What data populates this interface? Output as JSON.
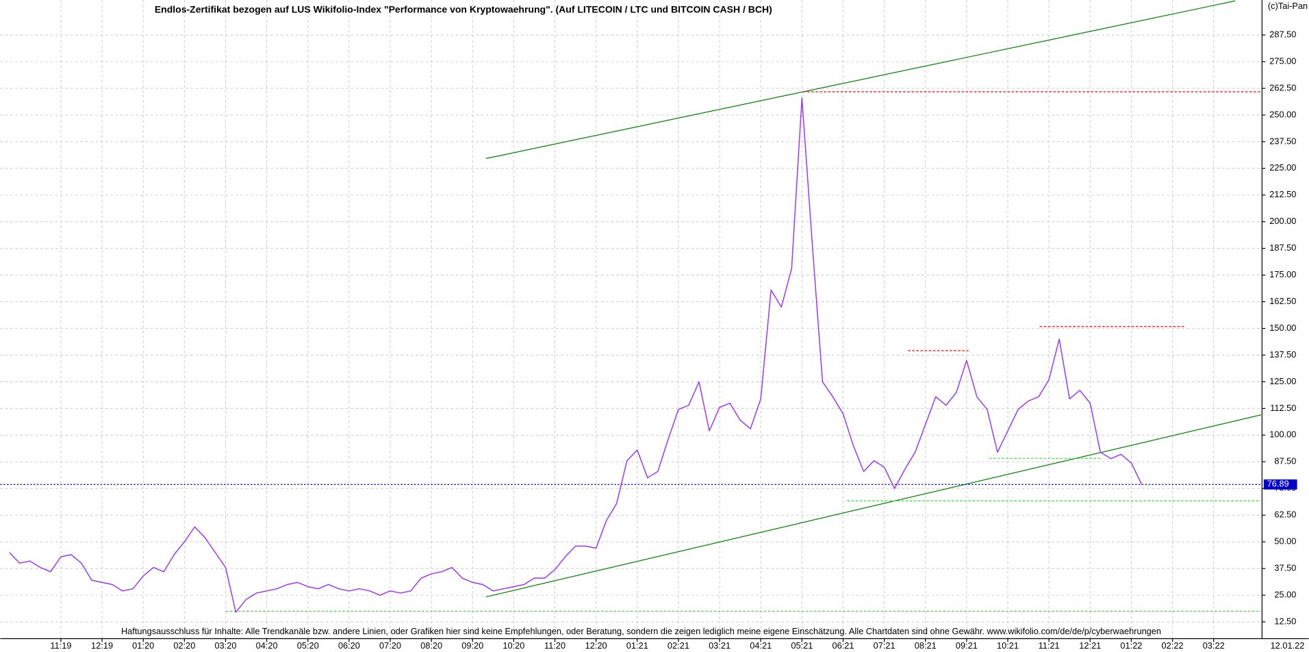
{
  "chart_data": {
    "type": "line",
    "title": "Endlos-Zertifikat bezogen auf LUS Wikifolio-Index \"Performance von Kryptowaehrung\". (Auf LITECOIN / LTC und BITCOIN CASH / BCH)",
    "copyright": "(c)Tai-Pan",
    "disclaimer": "Haftungsausschluss für Inhalte: Alle Trendkanäle bzw. andere Linien, oder Grafiken hier sind keine Empfehlungen, oder Beratung, sondern die zeigen lediglich meine eigene Einschätzung. Alle Chartdaten sind ohne Gewähr.  www.wikifolio.com/de/de/p/cyberwaehrungen",
    "date_label": "12.01.22",
    "categories": [
      null,
      null,
      null,
      null,
      null,
      "11:19",
      null,
      null,
      null,
      "12:19",
      null,
      null,
      null,
      "01:20",
      null,
      null,
      null,
      "02:20",
      null,
      null,
      null,
      "03:20",
      null,
      null,
      null,
      "04:20",
      null,
      null,
      null,
      "05:20",
      null,
      null,
      null,
      "06:20",
      null,
      null,
      null,
      "07:20",
      null,
      null,
      null,
      "08:20",
      null,
      null,
      null,
      "09:20",
      null,
      null,
      null,
      "10:20",
      null,
      null,
      null,
      "11:20",
      null,
      null,
      null,
      "12:20",
      null,
      null,
      null,
      "01:21",
      null,
      null,
      null,
      "02:21",
      null,
      null,
      null,
      "03:21",
      null,
      null,
      null,
      "04:21",
      null,
      null,
      null,
      "05:21",
      null,
      null,
      null,
      "06:21",
      null,
      null,
      null,
      "07:21",
      null,
      null,
      null,
      "08:21",
      null,
      null,
      null,
      "09:21",
      null,
      null,
      null,
      "10:21",
      null,
      null,
      null,
      "11:21",
      null,
      null,
      null,
      "12:21",
      null,
      null,
      null,
      "01:22",
      null,
      null,
      null,
      "02:22",
      null,
      null,
      null,
      "03:22",
      null,
      null,
      null
    ],
    "values": [
      45,
      40,
      41,
      38,
      36,
      43,
      44,
      40,
      32,
      31,
      30,
      27,
      28,
      34,
      38,
      36,
      44,
      50,
      57,
      52,
      45,
      38,
      17,
      23,
      26,
      27,
      28,
      30,
      31,
      29,
      28,
      30,
      28,
      27,
      28,
      27,
      25,
      27,
      26,
      27,
      33,
      35,
      36,
      38,
      33,
      31,
      30,
      27,
      28,
      29,
      30,
      33,
      33,
      37,
      43,
      48,
      48,
      47,
      60,
      68,
      88,
      93,
      80,
      83,
      98,
      112,
      114,
      125,
      102,
      113,
      115,
      107,
      103,
      117,
      168,
      160,
      178,
      258,
      190,
      125,
      118,
      110,
      95,
      83,
      88,
      85,
      75,
      84,
      92,
      105,
      118,
      114,
      120,
      135,
      118,
      112,
      92,
      102,
      112,
      116,
      118,
      126,
      145,
      117,
      121,
      115,
      92,
      89,
      91,
      87,
      77,
      null,
      null,
      null,
      null,
      null,
      null,
      null,
      null,
      null,
      null
    ],
    "color": "#9933ff",
    "last_value": 76.89,
    "last_value_color": "#0000cc",
    "lines": [
      {
        "color": "#008000",
        "style": "solid",
        "x": [
          46.3,
          119.1
        ],
        "values": [
          229.6,
          303.5
        ]
      },
      {
        "color": "#008000",
        "style": "solid",
        "x": [
          46.3,
          121.6
        ],
        "values": [
          24.2,
          109.5
        ]
      },
      {
        "color": "#ff0000",
        "style": "dashed",
        "x": [
          77.1,
          121.6
        ],
        "values": [
          260.9,
          260.9
        ]
      },
      {
        "color": "#ff0000",
        "style": "dashed",
        "x": [
          87.3,
          93.2
        ],
        "values": [
          139.6,
          139.6
        ]
      },
      {
        "color": "#ff0000",
        "style": "dashed",
        "x": [
          100.1,
          114.3
        ],
        "values": [
          150.9,
          150.9
        ]
      },
      {
        "color": "#33dd33",
        "style": "dashed",
        "x": [
          95.2,
          106.2
        ],
        "values": [
          89.1,
          89.1
        ]
      },
      {
        "color": "#33dd33",
        "style": "dashed",
        "x": [
          81.4,
          121.6
        ],
        "values": [
          69.2,
          69.2
        ]
      },
      {
        "color": "#33dd33",
        "style": "dashed",
        "x": [
          21,
          121.6
        ],
        "values": [
          17.5,
          17.5
        ]
      }
    ],
    "ylim": [
      6.6,
      303.9
    ],
    "yticks": [
      {
        "value": 12.5,
        "label": "12.50"
      },
      {
        "value": 25,
        "label": "25.00"
      },
      {
        "value": 37.5,
        "label": "37.50"
      },
      {
        "value": 50,
        "label": "50.00"
      },
      {
        "value": 62.5,
        "label": "62.50"
      },
      {
        "value": 75,
        "label": "75.00"
      },
      {
        "value": 87.5,
        "label": "87.50"
      },
      {
        "value": 100,
        "label": "100.00"
      },
      {
        "value": 112.5,
        "label": "112.50"
      },
      {
        "value": 125,
        "label": "125.00"
      },
      {
        "value": 137.5,
        "label": "137.50"
      },
      {
        "value": 150,
        "label": "150.00"
      },
      {
        "value": 162.5,
        "label": "162.50"
      },
      {
        "value": 175,
        "label": "175.00"
      },
      {
        "value": 187.5,
        "label": "187.50"
      },
      {
        "value": 200,
        "label": "200.00"
      },
      {
        "value": 212.5,
        "label": "212.50"
      },
      {
        "value": 225,
        "label": "225.00"
      },
      {
        "value": 237.5,
        "label": "237.50"
      },
      {
        "value": 250,
        "label": "250.00"
      },
      {
        "value": 262.5,
        "label": "262.50"
      },
      {
        "value": 275,
        "label": "275.00"
      },
      {
        "value": 287.5,
        "label": "287.50"
      }
    ],
    "grid": true
  }
}
